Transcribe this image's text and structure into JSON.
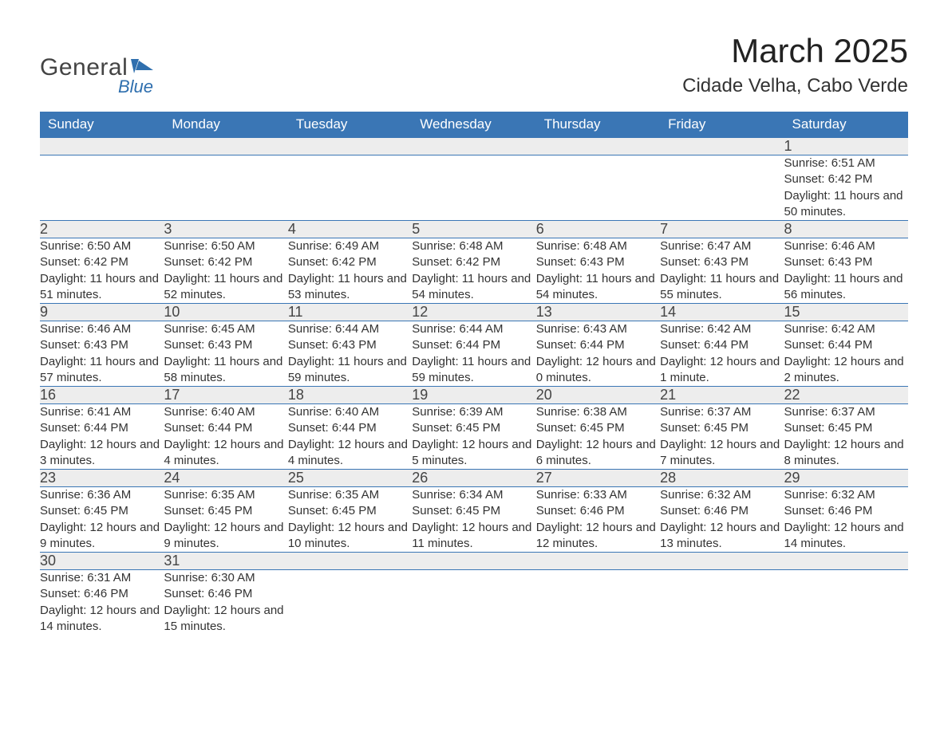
{
  "logo": {
    "text_main": "General",
    "text_sub": "Blue",
    "accent_color": "#2f6fae"
  },
  "title": "March 2025",
  "location": "Cidade Velha, Cabo Verde",
  "header_bg": "#3a76b5",
  "header_fg": "#ffffff",
  "daynum_bg": "#ededed",
  "rule_color": "#6a9ccc",
  "weekdays": [
    "Sunday",
    "Monday",
    "Tuesday",
    "Wednesday",
    "Thursday",
    "Friday",
    "Saturday"
  ],
  "weeks": [
    [
      null,
      null,
      null,
      null,
      null,
      null,
      {
        "n": "1",
        "sunrise": "6:51 AM",
        "sunset": "6:42 PM",
        "daylight": "11 hours and 50 minutes."
      }
    ],
    [
      {
        "n": "2",
        "sunrise": "6:50 AM",
        "sunset": "6:42 PM",
        "daylight": "11 hours and 51 minutes."
      },
      {
        "n": "3",
        "sunrise": "6:50 AM",
        "sunset": "6:42 PM",
        "daylight": "11 hours and 52 minutes."
      },
      {
        "n": "4",
        "sunrise": "6:49 AM",
        "sunset": "6:42 PM",
        "daylight": "11 hours and 53 minutes."
      },
      {
        "n": "5",
        "sunrise": "6:48 AM",
        "sunset": "6:42 PM",
        "daylight": "11 hours and 54 minutes."
      },
      {
        "n": "6",
        "sunrise": "6:48 AM",
        "sunset": "6:43 PM",
        "daylight": "11 hours and 54 minutes."
      },
      {
        "n": "7",
        "sunrise": "6:47 AM",
        "sunset": "6:43 PM",
        "daylight": "11 hours and 55 minutes."
      },
      {
        "n": "8",
        "sunrise": "6:46 AM",
        "sunset": "6:43 PM",
        "daylight": "11 hours and 56 minutes."
      }
    ],
    [
      {
        "n": "9",
        "sunrise": "6:46 AM",
        "sunset": "6:43 PM",
        "daylight": "11 hours and 57 minutes."
      },
      {
        "n": "10",
        "sunrise": "6:45 AM",
        "sunset": "6:43 PM",
        "daylight": "11 hours and 58 minutes."
      },
      {
        "n": "11",
        "sunrise": "6:44 AM",
        "sunset": "6:43 PM",
        "daylight": "11 hours and 59 minutes."
      },
      {
        "n": "12",
        "sunrise": "6:44 AM",
        "sunset": "6:44 PM",
        "daylight": "11 hours and 59 minutes."
      },
      {
        "n": "13",
        "sunrise": "6:43 AM",
        "sunset": "6:44 PM",
        "daylight": "12 hours and 0 minutes."
      },
      {
        "n": "14",
        "sunrise": "6:42 AM",
        "sunset": "6:44 PM",
        "daylight": "12 hours and 1 minute."
      },
      {
        "n": "15",
        "sunrise": "6:42 AM",
        "sunset": "6:44 PM",
        "daylight": "12 hours and 2 minutes."
      }
    ],
    [
      {
        "n": "16",
        "sunrise": "6:41 AM",
        "sunset": "6:44 PM",
        "daylight": "12 hours and 3 minutes."
      },
      {
        "n": "17",
        "sunrise": "6:40 AM",
        "sunset": "6:44 PM",
        "daylight": "12 hours and 4 minutes."
      },
      {
        "n": "18",
        "sunrise": "6:40 AM",
        "sunset": "6:44 PM",
        "daylight": "12 hours and 4 minutes."
      },
      {
        "n": "19",
        "sunrise": "6:39 AM",
        "sunset": "6:45 PM",
        "daylight": "12 hours and 5 minutes."
      },
      {
        "n": "20",
        "sunrise": "6:38 AM",
        "sunset": "6:45 PM",
        "daylight": "12 hours and 6 minutes."
      },
      {
        "n": "21",
        "sunrise": "6:37 AM",
        "sunset": "6:45 PM",
        "daylight": "12 hours and 7 minutes."
      },
      {
        "n": "22",
        "sunrise": "6:37 AM",
        "sunset": "6:45 PM",
        "daylight": "12 hours and 8 minutes."
      }
    ],
    [
      {
        "n": "23",
        "sunrise": "6:36 AM",
        "sunset": "6:45 PM",
        "daylight": "12 hours and 9 minutes."
      },
      {
        "n": "24",
        "sunrise": "6:35 AM",
        "sunset": "6:45 PM",
        "daylight": "12 hours and 9 minutes."
      },
      {
        "n": "25",
        "sunrise": "6:35 AM",
        "sunset": "6:45 PM",
        "daylight": "12 hours and 10 minutes."
      },
      {
        "n": "26",
        "sunrise": "6:34 AM",
        "sunset": "6:45 PM",
        "daylight": "12 hours and 11 minutes."
      },
      {
        "n": "27",
        "sunrise": "6:33 AM",
        "sunset": "6:46 PM",
        "daylight": "12 hours and 12 minutes."
      },
      {
        "n": "28",
        "sunrise": "6:32 AM",
        "sunset": "6:46 PM",
        "daylight": "12 hours and 13 minutes."
      },
      {
        "n": "29",
        "sunrise": "6:32 AM",
        "sunset": "6:46 PM",
        "daylight": "12 hours and 14 minutes."
      }
    ],
    [
      {
        "n": "30",
        "sunrise": "6:31 AM",
        "sunset": "6:46 PM",
        "daylight": "12 hours and 14 minutes."
      },
      {
        "n": "31",
        "sunrise": "6:30 AM",
        "sunset": "6:46 PM",
        "daylight": "12 hours and 15 minutes."
      },
      null,
      null,
      null,
      null,
      null
    ]
  ],
  "labels": {
    "sunrise": "Sunrise:",
    "sunset": "Sunset:",
    "daylight": "Daylight:"
  }
}
